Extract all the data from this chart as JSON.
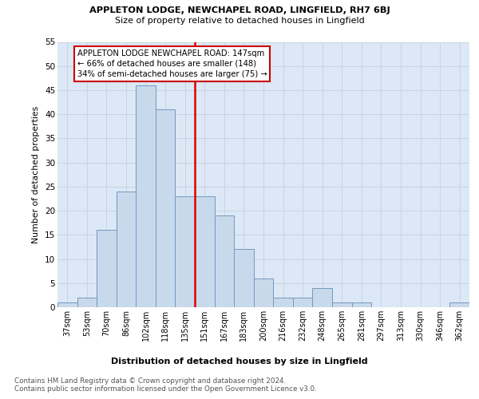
{
  "title1": "APPLETON LODGE, NEWCHAPEL ROAD, LINGFIELD, RH7 6BJ",
  "title2": "Size of property relative to detached houses in Lingfield",
  "xlabel": "Distribution of detached houses by size in Lingfield",
  "ylabel": "Number of detached properties",
  "categories": [
    "37sqm",
    "53sqm",
    "70sqm",
    "86sqm",
    "102sqm",
    "118sqm",
    "135sqm",
    "151sqm",
    "167sqm",
    "183sqm",
    "200sqm",
    "216sqm",
    "232sqm",
    "248sqm",
    "265sqm",
    "281sqm",
    "297sqm",
    "313sqm",
    "330sqm",
    "346sqm",
    "362sqm"
  ],
  "values": [
    1,
    2,
    16,
    24,
    46,
    41,
    23,
    23,
    19,
    12,
    6,
    2,
    2,
    4,
    1,
    1,
    0,
    0,
    0,
    0,
    1
  ],
  "bar_color": "#c9d9ec",
  "bar_edge_color": "#7098c0",
  "vline_after_index": 6,
  "vline_color": "#dd0000",
  "annotation_text": "APPLETON LODGE NEWCHAPEL ROAD: 147sqm\n← 66% of detached houses are smaller (148)\n34% of semi-detached houses are larger (75) →",
  "annotation_box_color": "#ffffff",
  "annotation_box_edge": "#cc0000",
  "ylim": [
    0,
    55
  ],
  "yticks": [
    0,
    5,
    10,
    15,
    20,
    25,
    30,
    35,
    40,
    45,
    50,
    55
  ],
  "footnote": "Contains HM Land Registry data © Crown copyright and database right 2024.\nContains public sector information licensed under the Open Government Licence v3.0.",
  "grid_color": "#c8d4e4",
  "background_color": "#dce8f5"
}
